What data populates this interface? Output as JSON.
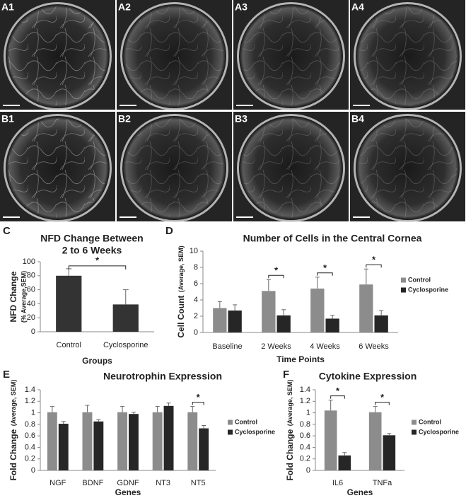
{
  "image_panels": [
    "A1",
    "A2",
    "A3",
    "A4",
    "B1",
    "B2",
    "B3",
    "B4"
  ],
  "chart_data": [
    {
      "type": "bar",
      "label": "C",
      "title": [
        "NFD Change Between",
        "2 to 6 Weeks"
      ],
      "ylabel": "NFD Change",
      "ylabel_note": "(% Average,SEM)",
      "xlabel": "Groups",
      "categories": [
        "Control",
        "Cyclosporine"
      ],
      "values": [
        80,
        39
      ],
      "errors": [
        10,
        21
      ],
      "color": "#333333",
      "ylim": [
        0,
        100
      ],
      "yticks": [
        0,
        20,
        40,
        60,
        80,
        100
      ],
      "significance": {
        "label": "*",
        "pairs": [
          [
            0,
            1
          ]
        ]
      }
    },
    {
      "type": "bar",
      "label": "D",
      "title": [
        "Number of Cells in the Central Cornea"
      ],
      "ylabel": "Cell Count",
      "ylabel_note": "(Average, SEM)",
      "xlabel": "Time Points",
      "categories": [
        "Baseline",
        "2 Weeks",
        "4 Weeks",
        "6 Weeks"
      ],
      "series": [
        {
          "name": "Control",
          "color": "#8c8c8c",
          "values": [
            3.0,
            5.1,
            5.4,
            5.9
          ],
          "errors": [
            0.8,
            1.4,
            1.4,
            1.9
          ]
        },
        {
          "name": "Cyclosporine",
          "color": "#262626",
          "values": [
            2.7,
            2.1,
            1.7,
            2.1
          ],
          "errors": [
            0.7,
            0.7,
            0.4,
            0.6
          ]
        }
      ],
      "ylim": [
        0,
        10
      ],
      "yticks": [
        0,
        2,
        4,
        6,
        8,
        10
      ],
      "legend": "right",
      "significance": {
        "label": "*",
        "categories": [
          false,
          true,
          true,
          true
        ]
      }
    },
    {
      "type": "bar",
      "label": "E",
      "title": [
        "Neurotrophin Expression"
      ],
      "ylabel": "Fold Change",
      "ylabel_note": "(Average, SEM)",
      "xlabel": "Genes",
      "categories": [
        "NGF",
        "BDNF",
        "GDNF",
        "NT3",
        "NT5"
      ],
      "series": [
        {
          "name": "Control",
          "color": "#8c8c8c",
          "values": [
            1.01,
            1.01,
            1.01,
            1.01,
            1.01
          ],
          "errors": [
            0.1,
            0.12,
            0.1,
            0.1,
            0.1
          ]
        },
        {
          "name": "Cyclosporine",
          "color": "#262626",
          "values": [
            0.81,
            0.85,
            0.98,
            1.12,
            0.73
          ],
          "errors": [
            0.04,
            0.03,
            0.03,
            0.05,
            0.05
          ]
        }
      ],
      "ylim": [
        0,
        1.4
      ],
      "yticks": [
        0,
        0.2,
        0.4,
        0.6,
        0.8,
        1,
        1.2,
        1.4
      ],
      "legend": "right",
      "significance": {
        "label": "*",
        "categories": [
          false,
          false,
          false,
          false,
          true
        ]
      }
    },
    {
      "type": "bar",
      "label": "F",
      "title": [
        "Cytokine Expression"
      ],
      "ylabel": "Fold Change",
      "ylabel_note": "(Average, SEM)",
      "xlabel": "Genes",
      "categories": [
        "IL6",
        "TNFa"
      ],
      "series": [
        {
          "name": "Control",
          "color": "#8c8c8c",
          "values": [
            1.04,
            1.01
          ],
          "errors": [
            0.18,
            0.1
          ]
        },
        {
          "name": "Cyclosporine",
          "color": "#262626",
          "values": [
            0.26,
            0.61
          ],
          "errors": [
            0.05,
            0.03
          ]
        }
      ],
      "ylim": [
        0,
        1.4
      ],
      "yticks": [
        0,
        0.2,
        0.4,
        0.6,
        0.8,
        1,
        1.2,
        1.4
      ],
      "legend": "right",
      "significance": {
        "label": "*",
        "categories": [
          true,
          true
        ]
      }
    }
  ]
}
